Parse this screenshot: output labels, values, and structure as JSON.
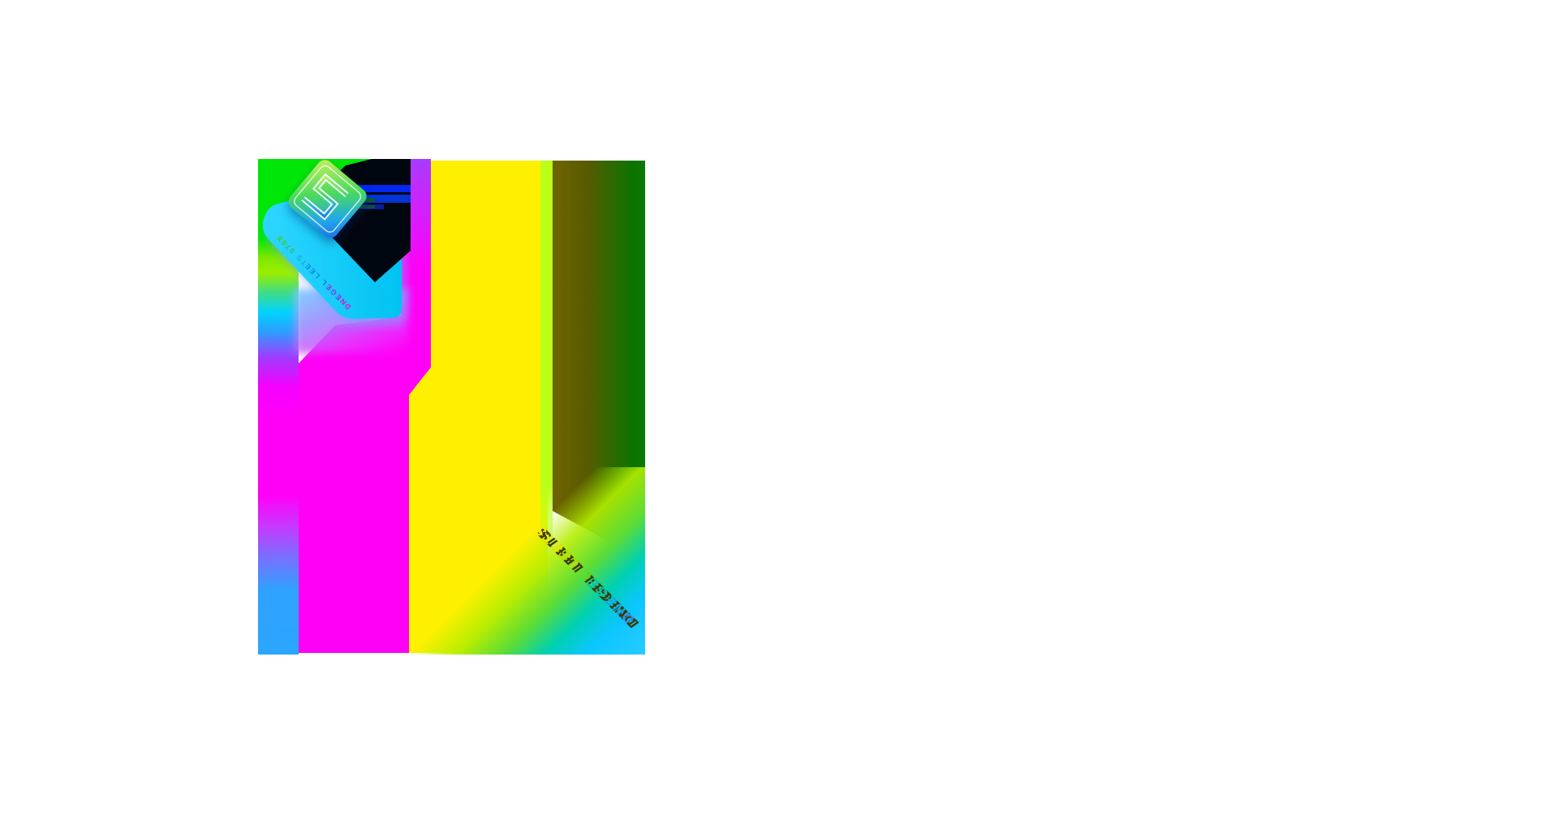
{
  "page": {
    "background": "#ffffff"
  },
  "artwork": {
    "name": "X570 Steel Legend rainbow artwork",
    "band_text": "X570 STEEL LEGEND",
    "big_text": "STEEL LEGEND",
    "logo_icon": "steel-legend-s-icon",
    "colors": {
      "green": "#00e707",
      "magenta": "#ff00f7",
      "yellow": "#fff000",
      "cyan_band": "#19ceff",
      "lime_strip": "#b9ff17",
      "olive": "#6b6200",
      "dark_green": "#0b7400",
      "azure_bottom_left": "#2ba6ff",
      "glitch_blue": "#0127f0",
      "shadow_black": "#00060f",
      "text_extrude": "#3e3a00",
      "band_text_gradient": [
        "#3ecc16",
        "#2db86a",
        "#18b0c8",
        "#0e86dc",
        "#1470e8",
        "#8c2be0",
        "#e014c9"
      ],
      "big_text_gradient": [
        "#ffe800",
        "#f0e600",
        "#c0e000",
        "#66d816",
        "#00c8b4",
        "#0ea7f0",
        "#2e8df5"
      ],
      "logo_gradient": [
        "#c9f05c",
        "#49d95e",
        "#21a8e8",
        "#1b6ce8"
      ]
    }
  }
}
